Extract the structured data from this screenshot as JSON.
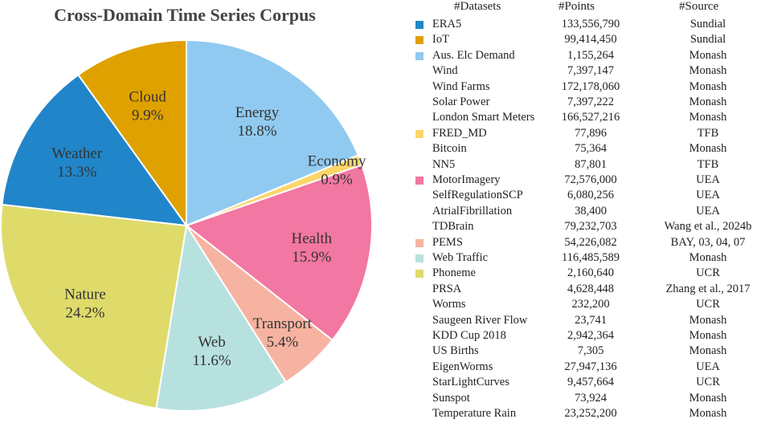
{
  "chart_data": {
    "type": "pie",
    "title": "Cross-Domain Time Series Corpus",
    "slices": [
      {
        "label": "Energy",
        "value": 18.8,
        "pct_label": "18.8%",
        "color": "#91caf0"
      },
      {
        "label": "Economy",
        "value": 0.9,
        "pct_label": "0.9%",
        "color": "#fcd669"
      },
      {
        "label": "Health",
        "value": 15.9,
        "pct_label": "15.9%",
        "color": "#f277a2"
      },
      {
        "label": "Transport",
        "value": 5.4,
        "pct_label": "5.4%",
        "color": "#f7b3a1"
      },
      {
        "label": "Web",
        "value": 11.6,
        "pct_label": "11.6%",
        "color": "#b7e1df"
      },
      {
        "label": "Nature",
        "value": 24.2,
        "pct_label": "24.2%",
        "color": "#dedb6b"
      },
      {
        "label": "Weather",
        "value": 13.3,
        "pct_label": "13.3%",
        "color": "#2185c9"
      },
      {
        "label": "Cloud",
        "value": 9.9,
        "pct_label": "9.9%",
        "color": "#dfa100"
      }
    ]
  },
  "legend": {
    "headers": {
      "datasets": "#Datasets",
      "points": "#Points",
      "source": "#Source"
    },
    "rows": [
      {
        "name": "ERA5",
        "points": "133,556,790",
        "source": "Sundial",
        "color": "#2185c9"
      },
      {
        "name": "IoT",
        "points": "99,414,450",
        "source": "Sundial",
        "color": "#dfa100"
      },
      {
        "name": "Aus. Elc Demand",
        "points": "1,155,264",
        "source": "Monash",
        "color": "#91caf0"
      },
      {
        "name": "Wind",
        "points": "7,397,147",
        "source": "Monash",
        "color": ""
      },
      {
        "name": "Wind Farms",
        "points": "172,178,060",
        "source": "Monash",
        "color": ""
      },
      {
        "name": "Solar Power",
        "points": "7,397,222",
        "source": "Monash",
        "color": ""
      },
      {
        "name": "London Smart Meters",
        "points": "166,527,216",
        "source": "Monash",
        "color": ""
      },
      {
        "name": "FRED_MD",
        "points": "77,896",
        "source": "TFB",
        "color": "#fcd669"
      },
      {
        "name": "Bitcoin",
        "points": "75,364",
        "source": "Monash",
        "color": ""
      },
      {
        "name": "NN5",
        "points": "87,801",
        "source": "TFB",
        "color": ""
      },
      {
        "name": "MotorImagery",
        "points": "72,576,000",
        "source": "UEA",
        "color": "#f277a2"
      },
      {
        "name": "SelfRegulationSCP",
        "points": "6,080,256",
        "source": "UEA",
        "color": ""
      },
      {
        "name": "AtrialFibrillation",
        "points": "38,400",
        "source": "UEA",
        "color": ""
      },
      {
        "name": "TDBrain",
        "points": "79,232,703",
        "source": "Wang et al., 2024b",
        "color": ""
      },
      {
        "name": "PEMS",
        "points": "54,226,082",
        "source": "BAY, 03, 04, 07",
        "color": "#f7b3a1"
      },
      {
        "name": "Web Traffic",
        "points": "116,485,589",
        "source": "Monash",
        "color": "#b7e1df"
      },
      {
        "name": "Phoneme",
        "points": "2,160,640",
        "source": "UCR",
        "color": "#dedb6b"
      },
      {
        "name": "PRSA",
        "points": "4,628,448",
        "source": "Zhang et al., 2017",
        "color": ""
      },
      {
        "name": "Worms",
        "points": "232,200",
        "source": "UCR",
        "color": ""
      },
      {
        "name": "Saugeen River Flow",
        "points": "23,741",
        "source": "Monash",
        "color": ""
      },
      {
        "name": "KDD Cup 2018",
        "points": "2,942,364",
        "source": "Monash",
        "color": ""
      },
      {
        "name": "US Births",
        "points": "7,305",
        "source": "Monash",
        "color": ""
      },
      {
        "name": "EigenWorms",
        "points": "27,947,136",
        "source": "UEA",
        "color": ""
      },
      {
        "name": "StarLightCurves",
        "points": "9,457,664",
        "source": "UCR",
        "color": ""
      },
      {
        "name": "Sunspot",
        "points": "73,924",
        "source": "Monash",
        "color": ""
      },
      {
        "name": "Temperature Rain",
        "points": "23,252,200",
        "source": "Monash",
        "color": ""
      }
    ]
  }
}
